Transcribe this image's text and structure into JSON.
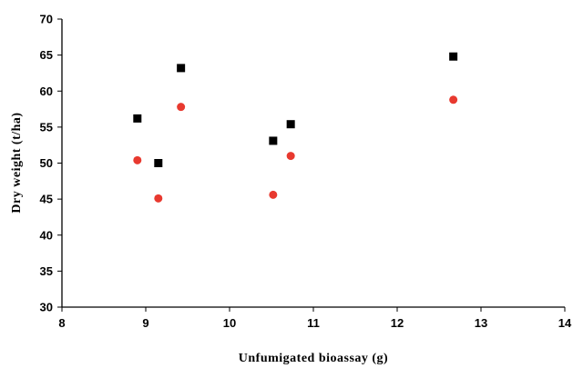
{
  "chart_data": {
    "type": "scatter",
    "xlabel": "Unfumigated bioassay (g)",
    "ylabel": "Dry weight (t/ha)",
    "xlim": [
      8,
      14
    ],
    "ylim": [
      30,
      70
    ],
    "x_ticks": [
      "8",
      "9",
      "10",
      "11",
      "12",
      "13",
      "14"
    ],
    "y_ticks": [
      "30",
      "35",
      "40",
      "45",
      "50",
      "55",
      "60",
      "65",
      "70"
    ],
    "grid": false,
    "legend": "none",
    "series": [
      {
        "marker": "square",
        "color": "#000000",
        "points": [
          {
            "x": 8.9,
            "y": 56.2
          },
          {
            "x": 9.15,
            "y": 50.0
          },
          {
            "x": 9.42,
            "y": 63.2
          },
          {
            "x": 10.52,
            "y": 53.1
          },
          {
            "x": 10.73,
            "y": 55.4
          },
          {
            "x": 12.67,
            "y": 64.8
          }
        ]
      },
      {
        "marker": "circle",
        "color": "#e8392f",
        "points": [
          {
            "x": 8.9,
            "y": 50.4
          },
          {
            "x": 9.15,
            "y": 45.1
          },
          {
            "x": 9.42,
            "y": 57.8
          },
          {
            "x": 10.52,
            "y": 45.6
          },
          {
            "x": 10.73,
            "y": 51.0
          },
          {
            "x": 12.67,
            "y": 58.8
          }
        ]
      }
    ]
  }
}
